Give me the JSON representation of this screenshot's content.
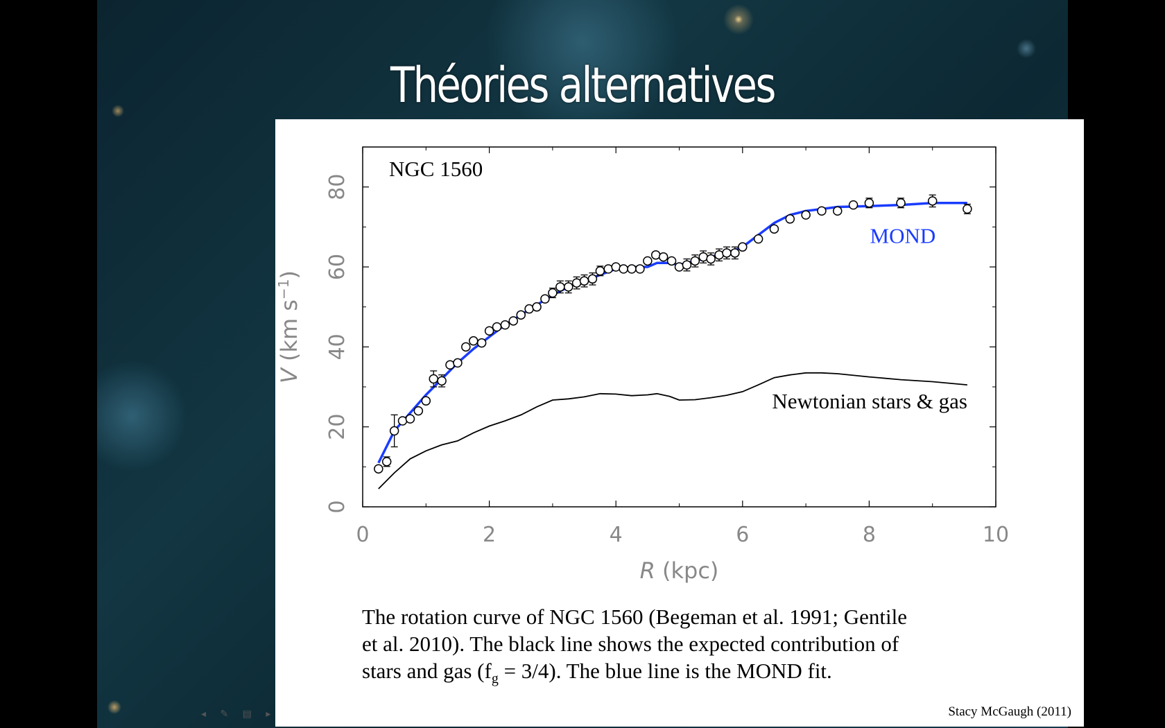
{
  "slide": {
    "title": "Théories alternatives"
  },
  "chart_data": {
    "type": "line",
    "annotation": "NGC 1560",
    "xlabel_var": "R",
    "xlabel_unit": "(kpc)",
    "ylabel": "V (km s",
    "ylabel_sup": "−1",
    "ylabel_end": ")",
    "xlim": [
      0,
      10
    ],
    "ylim": [
      0,
      90
    ],
    "xticks": [
      0,
      2,
      4,
      6,
      8,
      10
    ],
    "yticks": [
      0,
      20,
      40,
      60,
      80
    ],
    "series": [
      {
        "name": "MOND",
        "color": "#1a3cff",
        "x": [
          0.25,
          0.5,
          0.75,
          1.0,
          1.25,
          1.5,
          1.75,
          2.0,
          2.25,
          2.5,
          2.75,
          3.0,
          3.25,
          3.5,
          3.75,
          4.0,
          4.25,
          4.5,
          4.65,
          4.85,
          5.0,
          5.25,
          5.5,
          5.75,
          6.0,
          6.25,
          6.5,
          6.75,
          7.0,
          7.5,
          8.0,
          8.5,
          9.0,
          9.55
        ],
        "y": [
          11,
          19,
          23.5,
          28,
          32,
          36,
          39.5,
          42.5,
          45.5,
          48,
          50.5,
          53,
          55,
          56.5,
          58,
          59.5,
          60,
          60,
          61,
          61,
          60.5,
          61.5,
          62.5,
          63.5,
          65,
          68,
          71,
          73,
          74,
          75,
          75.2,
          75.5,
          76,
          76
        ]
      },
      {
        "name": "Newtonian stars & gas",
        "color": "#000000",
        "x": [
          0.25,
          0.5,
          0.75,
          1.0,
          1.25,
          1.5,
          1.75,
          2.0,
          2.25,
          2.5,
          2.75,
          3.0,
          3.25,
          3.5,
          3.75,
          4.0,
          4.25,
          4.5,
          4.65,
          4.85,
          5.0,
          5.25,
          5.5,
          5.75,
          6.0,
          6.25,
          6.5,
          6.75,
          7.0,
          7.25,
          7.5,
          8.0,
          8.5,
          9.0,
          9.55
        ],
        "y": [
          4.5,
          8.5,
          12,
          14,
          15.5,
          16.5,
          18.5,
          20.2,
          21.5,
          23,
          25,
          26.7,
          27,
          27.5,
          28.3,
          28.2,
          27.8,
          28,
          28.3,
          27.6,
          26.7,
          26.8,
          27.3,
          27.9,
          28.8,
          30.5,
          32.3,
          33,
          33.5,
          33.5,
          33.3,
          32.5,
          31.8,
          31.3,
          30.5
        ]
      }
    ],
    "points": [
      {
        "x": 0.25,
        "y": 9.5,
        "e": 0.8
      },
      {
        "x": 0.38,
        "y": 11.3,
        "e": 1.2
      },
      {
        "x": 0.5,
        "y": 19,
        "e": 4
      },
      {
        "x": 0.63,
        "y": 21.5,
        "e": 1
      },
      {
        "x": 0.75,
        "y": 22,
        "e": 0.8
      },
      {
        "x": 0.88,
        "y": 24,
        "e": 0.8
      },
      {
        "x": 1.0,
        "y": 26.5,
        "e": 0.8
      },
      {
        "x": 1.12,
        "y": 32,
        "e": 2
      },
      {
        "x": 1.25,
        "y": 31.5,
        "e": 1.5
      },
      {
        "x": 1.38,
        "y": 35.5,
        "e": 1
      },
      {
        "x": 1.5,
        "y": 36,
        "e": 0.8
      },
      {
        "x": 1.63,
        "y": 40,
        "e": 0.8
      },
      {
        "x": 1.75,
        "y": 41.5,
        "e": 0.8
      },
      {
        "x": 1.88,
        "y": 41,
        "e": 0.8
      },
      {
        "x": 2.0,
        "y": 44,
        "e": 0.8
      },
      {
        "x": 2.12,
        "y": 45,
        "e": 0.8
      },
      {
        "x": 2.25,
        "y": 45.5,
        "e": 0.8
      },
      {
        "x": 2.38,
        "y": 46.5,
        "e": 0.8
      },
      {
        "x": 2.5,
        "y": 48,
        "e": 0.8
      },
      {
        "x": 2.63,
        "y": 49.5,
        "e": 0.8
      },
      {
        "x": 2.75,
        "y": 50,
        "e": 0.8
      },
      {
        "x": 2.88,
        "y": 52,
        "e": 1
      },
      {
        "x": 3.0,
        "y": 53.5,
        "e": 1.2
      },
      {
        "x": 3.12,
        "y": 55,
        "e": 1.5
      },
      {
        "x": 3.25,
        "y": 55,
        "e": 1.5
      },
      {
        "x": 3.38,
        "y": 56,
        "e": 1.5
      },
      {
        "x": 3.5,
        "y": 56.5,
        "e": 1.5
      },
      {
        "x": 3.63,
        "y": 57,
        "e": 1.5
      },
      {
        "x": 3.75,
        "y": 59,
        "e": 1.2
      },
      {
        "x": 3.88,
        "y": 59.5,
        "e": 1
      },
      {
        "x": 4.0,
        "y": 60,
        "e": 1
      },
      {
        "x": 4.12,
        "y": 59.5,
        "e": 0.8
      },
      {
        "x": 4.25,
        "y": 59.5,
        "e": 0.8
      },
      {
        "x": 4.38,
        "y": 59.5,
        "e": 0.8
      },
      {
        "x": 4.5,
        "y": 61.5,
        "e": 0.8
      },
      {
        "x": 4.63,
        "y": 63,
        "e": 0.8
      },
      {
        "x": 4.75,
        "y": 62.5,
        "e": 0.8
      },
      {
        "x": 4.88,
        "y": 61.5,
        "e": 0.8
      },
      {
        "x": 5.0,
        "y": 60,
        "e": 1
      },
      {
        "x": 5.12,
        "y": 60.5,
        "e": 1.5
      },
      {
        "x": 5.25,
        "y": 61.5,
        "e": 1.5
      },
      {
        "x": 5.38,
        "y": 62.5,
        "e": 1.5
      },
      {
        "x": 5.5,
        "y": 62,
        "e": 1.5
      },
      {
        "x": 5.63,
        "y": 63,
        "e": 1.5
      },
      {
        "x": 5.75,
        "y": 63.5,
        "e": 1.5
      },
      {
        "x": 5.88,
        "y": 63.5,
        "e": 1.5
      },
      {
        "x": 6.0,
        "y": 65,
        "e": 1
      },
      {
        "x": 6.25,
        "y": 67,
        "e": 1
      },
      {
        "x": 6.5,
        "y": 69.5,
        "e": 1
      },
      {
        "x": 6.75,
        "y": 72,
        "e": 1
      },
      {
        "x": 7.0,
        "y": 73,
        "e": 1
      },
      {
        "x": 7.25,
        "y": 74,
        "e": 1
      },
      {
        "x": 7.5,
        "y": 74,
        "e": 1
      },
      {
        "x": 7.75,
        "y": 75.5,
        "e": 1
      },
      {
        "x": 8.0,
        "y": 76,
        "e": 1.2
      },
      {
        "x": 8.5,
        "y": 76,
        "e": 1.2
      },
      {
        "x": 9.0,
        "y": 76.5,
        "e": 1.5
      },
      {
        "x": 9.55,
        "y": 74.5,
        "e": 1.2
      }
    ]
  },
  "caption": {
    "line1": "The rotation curve of NGC 1560 (Begeman et al. 1991; Gentile",
    "line2": "et al. 2010).  The black line shows the expected contribution of",
    "line3a": "stars and gas (f",
    "line3sub": "g",
    "line3b": " = 3/4).  The blue line is the MOND fit."
  },
  "credit": "Stacy McGaugh (2011)"
}
